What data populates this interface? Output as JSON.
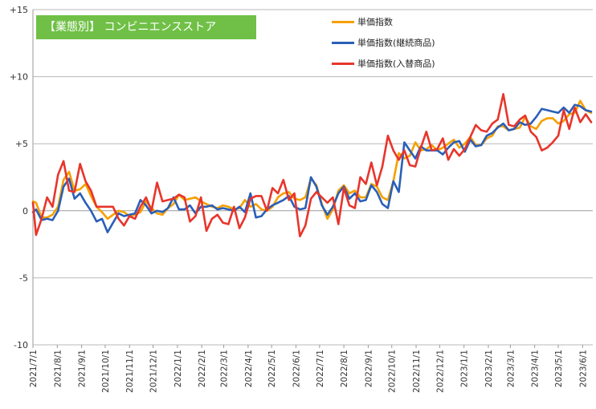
{
  "chart_data": {
    "type": "line",
    "title": "【業態別】 コンビニエンスストア",
    "xlabel": "",
    "ylabel": "",
    "ylim": [
      -10,
      15
    ],
    "yticks": [
      15,
      10,
      5,
      0,
      -5,
      -10
    ],
    "ytick_labels": [
      "+15",
      "+10",
      "+5",
      "0",
      "-5",
      "-10"
    ],
    "xlim": [
      "2021-07-01",
      "2023-06-14"
    ],
    "xtick_dates": [
      "2021-07-01",
      "2021-08-01",
      "2021-09-01",
      "2021-10-01",
      "2021-11-01",
      "2021-12-01",
      "2022-01-01",
      "2022-02-01",
      "2022-03-01",
      "2022-04-01",
      "2022-05-01",
      "2022-06-01",
      "2022-07-01",
      "2022-08-01",
      "2022-09-01",
      "2022-10-01",
      "2022-11-01",
      "2022-12-01",
      "2023-01-01",
      "2023-02-01",
      "2023-03-01",
      "2023-04-01",
      "2023-05-01",
      "2023-06-01"
    ],
    "xtick_labels": [
      "2021/7/1",
      "2021/8/1",
      "2021/9/1",
      "2021/10/1",
      "2021/11/1",
      "2021/12/1",
      "2022/1/1",
      "2022/2/1",
      "2022/3/1",
      "2022/4/1",
      "2022/5/1",
      "2022/6/1",
      "2022/7/1",
      "2022/8/1",
      "2022/9/1",
      "2022/10/1",
      "2022/11/1",
      "2022/12/1",
      "2023/1/1",
      "2023/2/1",
      "2023/3/1",
      "2023/4/1",
      "2023/5/1",
      "2023/6/1"
    ],
    "grid": "horizontal",
    "legend_position": "top-right",
    "series": [
      {
        "name": "単価指数",
        "color": "#f5a000",
        "x": [
          "2021-07-01",
          "2021-07-05",
          "2021-07-12",
          "2021-07-19",
          "2021-07-26",
          "2021-08-02",
          "2021-08-09",
          "2021-08-16",
          "2021-08-23",
          "2021-08-30",
          "2021-09-06",
          "2021-09-13",
          "2021-09-20",
          "2021-09-27",
          "2021-10-04",
          "2021-10-11",
          "2021-10-18",
          "2021-10-25",
          "2021-11-01",
          "2021-11-08",
          "2021-11-15",
          "2021-11-22",
          "2021-11-29",
          "2021-12-06",
          "2021-12-13",
          "2021-12-20",
          "2021-12-27",
          "2022-01-03",
          "2022-01-10",
          "2022-01-17",
          "2022-01-24",
          "2022-01-31",
          "2022-02-07",
          "2022-02-14",
          "2022-02-21",
          "2022-02-28",
          "2022-03-07",
          "2022-03-14",
          "2022-03-21",
          "2022-03-28",
          "2022-04-04",
          "2022-04-11",
          "2022-04-18",
          "2022-04-25",
          "2022-05-02",
          "2022-05-09",
          "2022-05-16",
          "2022-05-23",
          "2022-05-30",
          "2022-06-06",
          "2022-06-13",
          "2022-06-20",
          "2022-06-27",
          "2022-07-04",
          "2022-07-11",
          "2022-07-18",
          "2022-07-25",
          "2022-08-01",
          "2022-08-08",
          "2022-08-15",
          "2022-08-22",
          "2022-08-29",
          "2022-09-05",
          "2022-09-12",
          "2022-09-19",
          "2022-09-26",
          "2022-10-03",
          "2022-10-10",
          "2022-10-17",
          "2022-10-24",
          "2022-10-31",
          "2022-11-07",
          "2022-11-14",
          "2022-11-21",
          "2022-11-28",
          "2022-12-05",
          "2022-12-12",
          "2022-12-19",
          "2022-12-26",
          "2023-01-02",
          "2023-01-09",
          "2023-01-16",
          "2023-01-23",
          "2023-01-30",
          "2023-02-06",
          "2023-02-13",
          "2023-02-20",
          "2023-02-27",
          "2023-03-06",
          "2023-03-13",
          "2023-03-20",
          "2023-03-27",
          "2023-04-03",
          "2023-04-10",
          "2023-04-17",
          "2023-04-24",
          "2023-05-01",
          "2023-05-08",
          "2023-05-15",
          "2023-05-22",
          "2023-05-29",
          "2023-06-05",
          "2023-06-12"
        ],
        "values": [
          0.7,
          0.6,
          -0.5,
          -0.5,
          -0.3,
          0.3,
          2.3,
          2.9,
          1.5,
          1.6,
          2.0,
          1.1,
          0.3,
          -0.1,
          -0.6,
          -0.3,
          0.0,
          -0.1,
          -0.4,
          -0.3,
          -0.1,
          0.7,
          0.2,
          -0.2,
          -0.3,
          0.2,
          0.5,
          1.2,
          0.8,
          0.9,
          1.0,
          0.7,
          0.5,
          0.3,
          0.2,
          0.4,
          0.3,
          0.1,
          0.2,
          0.8,
          0.3,
          0.5,
          0.1,
          0.0,
          0.3,
          1.0,
          1.3,
          1.4,
          0.9,
          0.8,
          1.0,
          2.4,
          1.9,
          0.5,
          -0.6,
          0.1,
          1.5,
          1.9,
          1.3,
          1.5,
          1.0,
          1.0,
          2.0,
          1.8,
          1.0,
          0.8,
          2.2,
          4.3,
          3.9,
          4.1,
          5.1,
          4.5,
          4.6,
          4.9,
          4.5,
          4.7,
          5.0,
          5.3,
          4.7,
          5.0,
          5.5,
          4.9,
          4.9,
          5.4,
          5.6,
          6.3,
          6.3,
          6.0,
          6.1,
          6.2,
          7.0,
          6.3,
          6.1,
          6.7,
          6.9,
          6.9,
          6.5,
          6.7,
          7.2,
          7.3,
          8.2,
          7.5,
          7.3
        ]
      },
      {
        "name": "単価指数(継続商品)",
        "color": "#2a5fb8",
        "x": [
          "2021-07-01",
          "2021-07-05",
          "2021-07-12",
          "2021-07-19",
          "2021-07-26",
          "2021-08-02",
          "2021-08-09",
          "2021-08-16",
          "2021-08-23",
          "2021-08-30",
          "2021-09-06",
          "2021-09-13",
          "2021-09-20",
          "2021-09-27",
          "2021-10-04",
          "2021-10-11",
          "2021-10-18",
          "2021-10-25",
          "2021-11-01",
          "2021-11-08",
          "2021-11-15",
          "2021-11-22",
          "2021-11-29",
          "2021-12-06",
          "2021-12-13",
          "2021-12-20",
          "2021-12-27",
          "2022-01-03",
          "2022-01-10",
          "2022-01-17",
          "2022-01-24",
          "2022-01-31",
          "2022-02-07",
          "2022-02-14",
          "2022-02-21",
          "2022-02-28",
          "2022-03-07",
          "2022-03-14",
          "2022-03-21",
          "2022-03-28",
          "2022-04-04",
          "2022-04-11",
          "2022-04-18",
          "2022-04-25",
          "2022-05-02",
          "2022-05-09",
          "2022-05-16",
          "2022-05-23",
          "2022-05-30",
          "2022-06-06",
          "2022-06-13",
          "2022-06-20",
          "2022-06-27",
          "2022-07-04",
          "2022-07-11",
          "2022-07-18",
          "2022-07-25",
          "2022-08-01",
          "2022-08-08",
          "2022-08-15",
          "2022-08-22",
          "2022-08-29",
          "2022-09-05",
          "2022-09-12",
          "2022-09-19",
          "2022-09-26",
          "2022-10-03",
          "2022-10-10",
          "2022-10-17",
          "2022-10-24",
          "2022-10-31",
          "2022-11-07",
          "2022-11-14",
          "2022-11-21",
          "2022-11-28",
          "2022-12-05",
          "2022-12-12",
          "2022-12-19",
          "2022-12-26",
          "2023-01-02",
          "2023-01-09",
          "2023-01-16",
          "2023-01-23",
          "2023-01-30",
          "2023-02-06",
          "2023-02-13",
          "2023-02-20",
          "2023-02-27",
          "2023-03-06",
          "2023-03-13",
          "2023-03-20",
          "2023-03-27",
          "2023-04-03",
          "2023-04-10",
          "2023-04-17",
          "2023-04-24",
          "2023-05-01",
          "2023-05-08",
          "2023-05-15",
          "2023-05-22",
          "2023-05-29",
          "2023-06-05",
          "2023-06-12"
        ],
        "values": [
          -0.1,
          0.1,
          -0.7,
          -0.6,
          -0.7,
          0.0,
          1.8,
          2.4,
          0.9,
          1.3,
          0.6,
          0.0,
          -0.8,
          -0.6,
          -1.6,
          -0.9,
          -0.2,
          -0.4,
          -0.3,
          -0.2,
          0.8,
          0.4,
          -0.2,
          0.0,
          -0.1,
          0.2,
          1.0,
          0.1,
          0.1,
          0.4,
          -0.2,
          0.3,
          0.3,
          0.4,
          0.1,
          0.2,
          0.1,
          0.0,
          0.3,
          -0.1,
          1.3,
          -0.5,
          -0.4,
          0.1,
          0.4,
          0.6,
          0.8,
          1.1,
          0.3,
          0.1,
          0.2,
          2.5,
          1.8,
          0.4,
          -0.3,
          0.3,
          1.3,
          1.8,
          0.9,
          1.3,
          0.7,
          0.8,
          1.9,
          1.4,
          0.5,
          0.2,
          2.2,
          1.4,
          5.1,
          4.5,
          3.9,
          4.8,
          4.5,
          4.5,
          4.5,
          4.2,
          4.7,
          5.1,
          5.2,
          4.4,
          5.3,
          4.8,
          4.9,
          5.6,
          5.8,
          6.2,
          6.5,
          6.0,
          6.1,
          6.6,
          6.4,
          6.5,
          7.0,
          7.6,
          7.5,
          7.4,
          7.3,
          7.7,
          7.3,
          7.9,
          7.8,
          7.5,
          7.4
        ]
      },
      {
        "name": "単価指数(入替商品)",
        "color": "#e8352b",
        "x": [
          "2021-07-01",
          "2021-07-05",
          "2021-07-12",
          "2021-07-19",
          "2021-07-26",
          "2021-08-02",
          "2021-08-09",
          "2021-08-16",
          "2021-08-23",
          "2021-08-30",
          "2021-09-06",
          "2021-09-13",
          "2021-09-20",
          "2021-09-27",
          "2021-10-04",
          "2021-10-11",
          "2021-10-18",
          "2021-10-25",
          "2021-11-01",
          "2021-11-08",
          "2021-11-15",
          "2021-11-22",
          "2021-11-29",
          "2021-12-06",
          "2021-12-13",
          "2021-12-20",
          "2021-12-27",
          "2022-01-03",
          "2022-01-10",
          "2022-01-17",
          "2022-01-24",
          "2022-01-31",
          "2022-02-07",
          "2022-02-14",
          "2022-02-21",
          "2022-02-28",
          "2022-03-07",
          "2022-03-14",
          "2022-03-21",
          "2022-03-28",
          "2022-04-04",
          "2022-04-11",
          "2022-04-18",
          "2022-04-25",
          "2022-05-02",
          "2022-05-09",
          "2022-05-16",
          "2022-05-23",
          "2022-05-30",
          "2022-06-06",
          "2022-06-13",
          "2022-06-20",
          "2022-06-27",
          "2022-07-04",
          "2022-07-11",
          "2022-07-18",
          "2022-07-25",
          "2022-08-01",
          "2022-08-08",
          "2022-08-15",
          "2022-08-22",
          "2022-08-29",
          "2022-09-05",
          "2022-09-12",
          "2022-09-19",
          "2022-09-26",
          "2022-10-03",
          "2022-10-10",
          "2022-10-17",
          "2022-10-24",
          "2022-10-31",
          "2022-11-07",
          "2022-11-14",
          "2022-11-21",
          "2022-11-28",
          "2022-12-05",
          "2022-12-12",
          "2022-12-19",
          "2022-12-26",
          "2023-01-02",
          "2023-01-09",
          "2023-01-16",
          "2023-01-23",
          "2023-01-30",
          "2023-02-06",
          "2023-02-13",
          "2023-02-20",
          "2023-02-27",
          "2023-03-06",
          "2023-03-13",
          "2023-03-20",
          "2023-03-27",
          "2023-04-03",
          "2023-04-10",
          "2023-04-17",
          "2023-04-24",
          "2023-05-01",
          "2023-05-08",
          "2023-05-15",
          "2023-05-22",
          "2023-05-29",
          "2023-06-05",
          "2023-06-12"
        ],
        "values": [
          0.6,
          -1.8,
          -0.6,
          1.0,
          0.3,
          2.7,
          3.7,
          1.5,
          1.4,
          3.5,
          2.2,
          1.5,
          0.3,
          0.3,
          0.3,
          0.3,
          -0.6,
          -1.1,
          -0.4,
          -0.6,
          0.3,
          1.0,
          0.0,
          2.1,
          0.7,
          0.8,
          0.9,
          1.2,
          1.0,
          -0.8,
          -0.4,
          1.0,
          -1.5,
          -0.6,
          -0.3,
          -0.9,
          -1.0,
          0.3,
          -1.3,
          -0.5,
          0.9,
          1.1,
          1.1,
          0.0,
          1.7,
          1.3,
          2.3,
          0.8,
          1.3,
          -1.9,
          -1.1,
          0.9,
          1.4,
          1.0,
          0.6,
          1.0,
          -1.0,
          1.7,
          0.4,
          0.2,
          2.5,
          2.0,
          3.6,
          1.9,
          3.3,
          5.6,
          4.5,
          3.8,
          4.5,
          3.4,
          3.3,
          4.7,
          5.9,
          4.5,
          4.6,
          5.4,
          3.8,
          4.6,
          4.1,
          4.6,
          5.5,
          6.4,
          6.0,
          5.9,
          6.5,
          6.8,
          8.7,
          6.4,
          6.3,
          6.8,
          7.1,
          5.9,
          5.5,
          4.5,
          4.7,
          5.1,
          5.6,
          7.5,
          6.1,
          7.7,
          6.6,
          7.2,
          6.6
        ]
      }
    ]
  }
}
